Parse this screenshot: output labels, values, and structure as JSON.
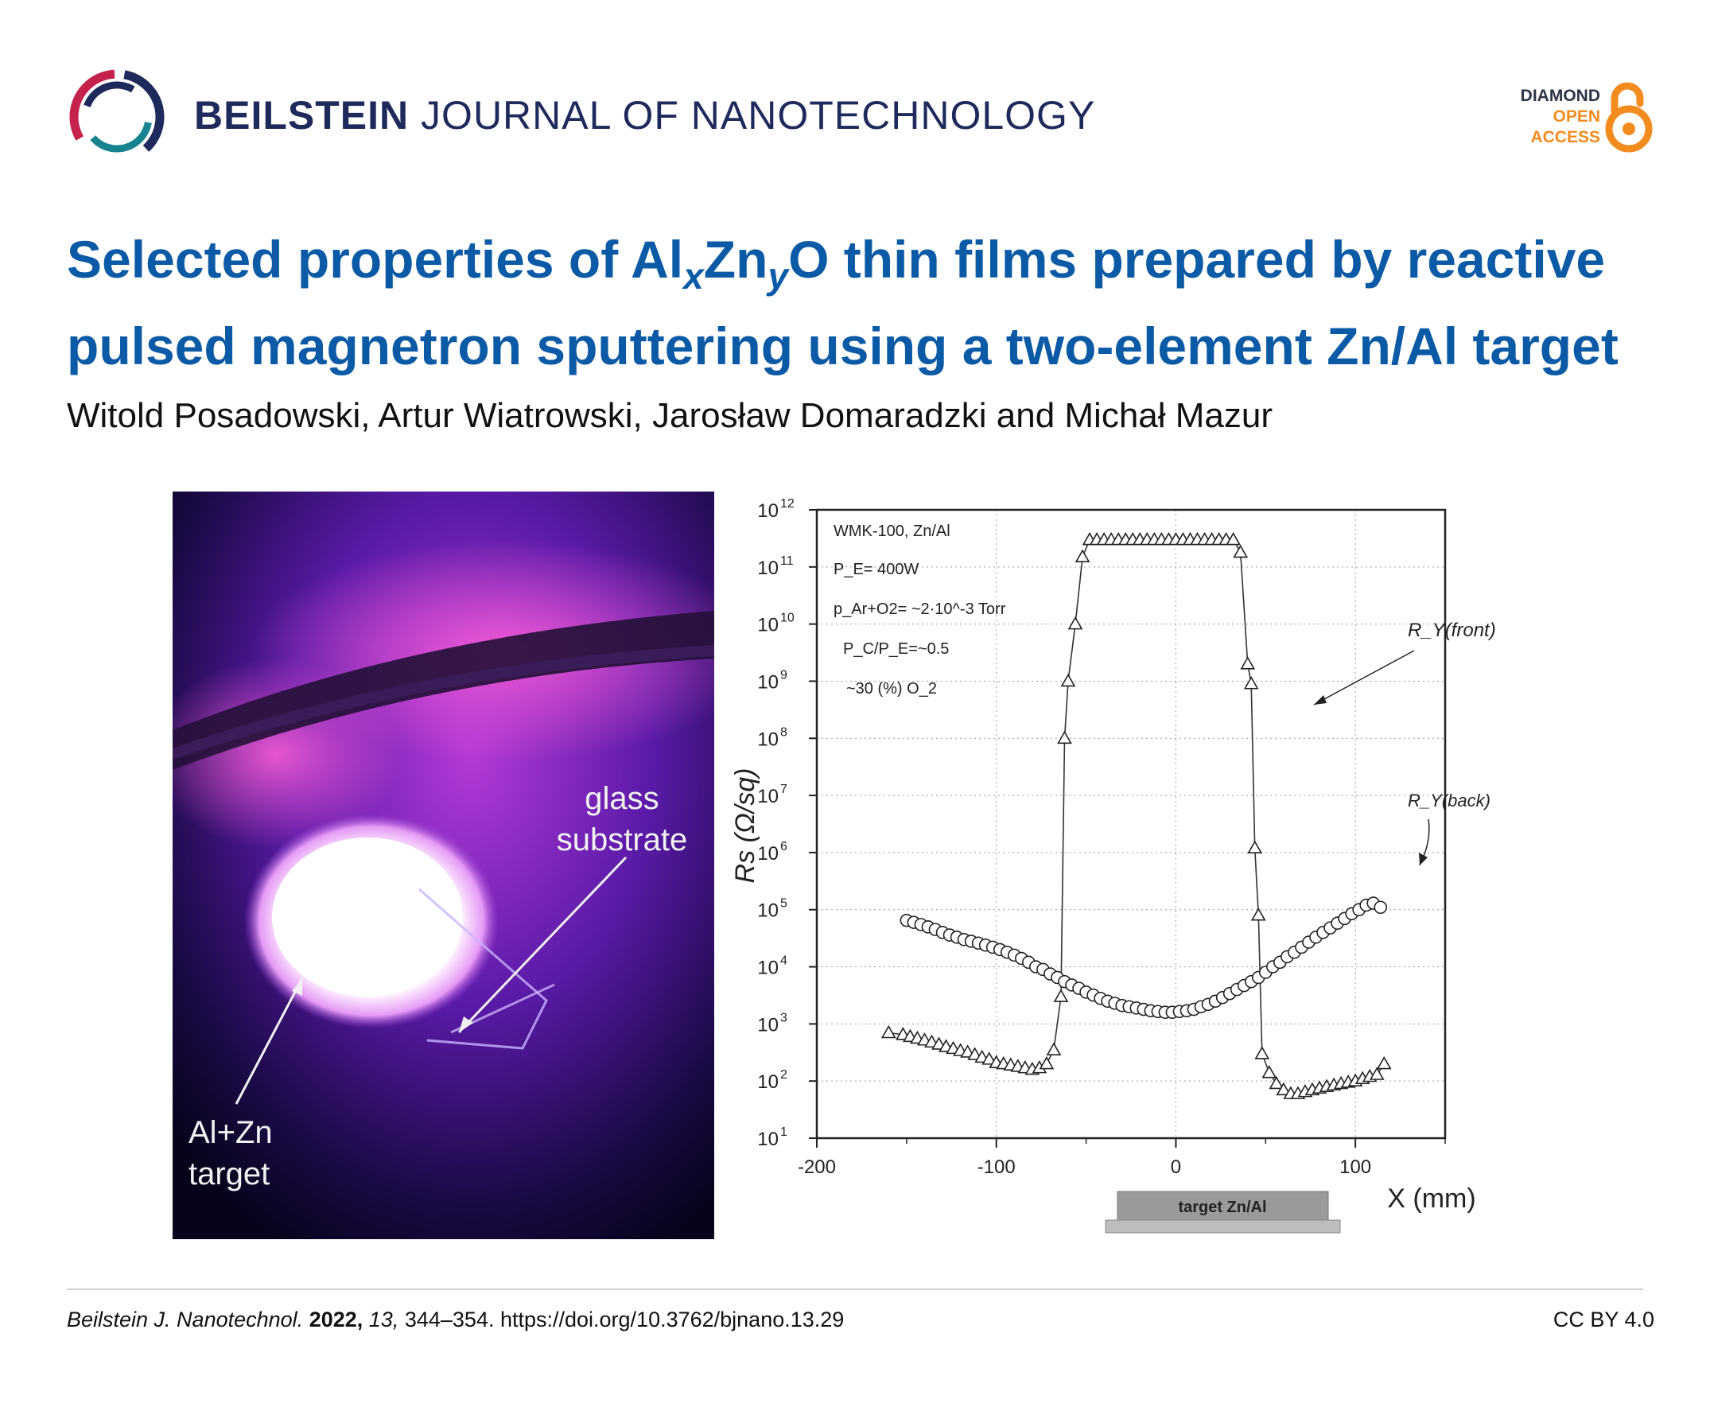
{
  "header": {
    "journal_bold": "BEILSTEIN",
    "journal_rest": "JOURNAL OF NANOTECHNOLOGY",
    "oa_line1": "DIAMOND",
    "oa_line2": "OPEN",
    "oa_line3": "ACCESS",
    "logo_icon": "beilstein-ring-logo",
    "oa_icon": "open-access-lock-icon",
    "colors": {
      "journal": "#1f2a5c",
      "title": "#0b5aa6",
      "oa_dark": "#2d3446",
      "oa_orange": "#f28c1e"
    }
  },
  "article": {
    "title_part1": "Selected properties of Al",
    "title_sub_x": "x",
    "title_part2": "Zn",
    "title_sub_y": "y",
    "title_part3": "O thin films prepared by reactive pulsed magnetron sputtering using a two-element Zn/Al target",
    "authors": "Witold Posadowski, Artur Wiatrowski, Jarosław Domaradzki and Michał Mazur"
  },
  "photo": {
    "label_substrate_1": "glass",
    "label_substrate_2": "substrate",
    "label_target_1": "Al+Zn",
    "label_target_2": "target"
  },
  "chart_data": {
    "type": "line",
    "ylabel": "Rs (Ω/sq)",
    "xlabel": "X (mm)",
    "xlim": [
      -200,
      150
    ],
    "ylim_log10": [
      1,
      12
    ],
    "x_ticks": [
      "-200",
      "-100",
      "0",
      "100"
    ],
    "y_ticks": [
      "10^1",
      "10^2",
      "10^3",
      "10^4",
      "10^5",
      "10^6",
      "10^7",
      "10^8",
      "10^9",
      "10^10",
      "10^11",
      "10^12"
    ],
    "grid": true,
    "annotations": {
      "condition_1": "WMK-100, Zn/Al",
      "condition_2": "P_E= 400W",
      "condition_3": "p_Ar+O2= ~2·10^-3 Torr",
      "condition_4": "P_C/P_E=~0.5",
      "condition_5": "~30 (%) O_2",
      "target_bar": "target Zn/Al"
    },
    "series": [
      {
        "name": "R_Y(front)",
        "marker": "triangle",
        "x": [
          -160,
          -152,
          -148,
          -144,
          -140,
          -136,
          -132,
          -128,
          -124,
          -120,
          -116,
          -112,
          -108,
          -104,
          -100,
          -96,
          -92,
          -88,
          -84,
          -80,
          -76,
          -72,
          -68,
          -64,
          -62,
          -60,
          -56,
          -52,
          -48,
          -44,
          -40,
          -36,
          -32,
          -28,
          -24,
          -20,
          -16,
          -12,
          -8,
          -4,
          0,
          4,
          8,
          12,
          16,
          20,
          24,
          28,
          32,
          36,
          40,
          42,
          44,
          46,
          48,
          52,
          56,
          60,
          64,
          68,
          72,
          76,
          80,
          84,
          88,
          92,
          96,
          100,
          104,
          108,
          112,
          116
        ],
        "y": [
          700,
          650,
          600,
          560,
          520,
          480,
          440,
          400,
          370,
          340,
          320,
          290,
          260,
          240,
          210,
          200,
          190,
          180,
          170,
          160,
          170,
          200,
          350,
          3000,
          100000000,
          1000000000,
          10000000000,
          150000000000,
          300000000000,
          300000000000,
          300000000000,
          300000000000,
          300000000000,
          300000000000,
          300000000000,
          300000000000,
          300000000000,
          300000000000,
          300000000000,
          300000000000,
          300000000000,
          300000000000,
          300000000000,
          300000000000,
          300000000000,
          300000000000,
          300000000000,
          300000000000,
          300000000000,
          180000000000,
          2000000000,
          900000000,
          1200000,
          80000,
          300,
          140,
          90,
          70,
          60,
          60,
          65,
          70,
          75,
          80,
          85,
          90,
          95,
          100,
          110,
          120,
          130,
          200
        ]
      },
      {
        "name": "R_Y(back)",
        "marker": "circle",
        "x": [
          -150,
          -146,
          -142,
          -138,
          -134,
          -130,
          -126,
          -122,
          -118,
          -114,
          -110,
          -106,
          -102,
          -98,
          -94,
          -90,
          -86,
          -82,
          -78,
          -74,
          -70,
          -66,
          -62,
          -58,
          -54,
          -50,
          -46,
          -42,
          -38,
          -34,
          -30,
          -26,
          -22,
          -18,
          -14,
          -10,
          -6,
          -2,
          2,
          6,
          10,
          14,
          18,
          22,
          26,
          30,
          34,
          38,
          42,
          46,
          50,
          54,
          58,
          62,
          66,
          70,
          74,
          78,
          82,
          86,
          90,
          94,
          98,
          102,
          106,
          110,
          114
        ],
        "y": [
          65000,
          60000,
          55000,
          50000,
          45000,
          40000,
          36000,
          33000,
          30000,
          28000,
          26000,
          24000,
          22000,
          20000,
          18000,
          16000,
          14000,
          12000,
          10000,
          9000,
          7500,
          6500,
          5500,
          4800,
          4200,
          3600,
          3200,
          2800,
          2500,
          2300,
          2100,
          2000,
          1900,
          1800,
          1700,
          1650,
          1600,
          1600,
          1650,
          1700,
          1800,
          2000,
          2200,
          2500,
          2900,
          3400,
          4000,
          4700,
          5500,
          6500,
          8000,
          10000,
          12000,
          15000,
          18000,
          22000,
          27000,
          33000,
          40000,
          48000,
          58000,
          70000,
          85000,
          100000,
          120000,
          130000,
          110000
        ]
      }
    ]
  },
  "footer": {
    "journal_abbr": "Beilstein J. Nanotechnol.",
    "year": "2022,",
    "volume": "13,",
    "pages_doi": "344–354. https://doi.org/10.3762/bjnano.13.29",
    "license": "CC BY 4.0"
  }
}
